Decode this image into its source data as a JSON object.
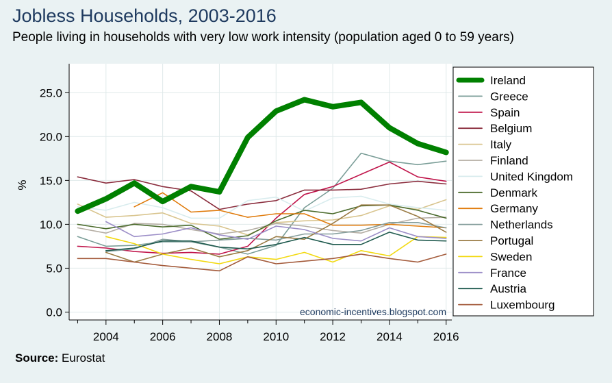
{
  "header": {
    "title": "Jobless Households, 2003-2016",
    "subtitle": "People living in households with very low work intensity (population aged 0 to 59 years)"
  },
  "footer": {
    "source_label": "Source:",
    "source_value": "Eurostat"
  },
  "watermark": "economic-incentives.blogspot.com",
  "chart_data": {
    "type": "line",
    "ylabel": "%",
    "xlabel": "",
    "x": [
      2003,
      2004,
      2005,
      2006,
      2007,
      2008,
      2009,
      2010,
      2011,
      2012,
      2013,
      2014,
      2015,
      2016
    ],
    "xticks": [
      2004,
      2006,
      2008,
      2010,
      2012,
      2014,
      2016
    ],
    "xtick_labels": [
      "2004",
      "2006",
      "2008",
      "2010",
      "2012",
      "2014",
      "2016"
    ],
    "yticks": [
      0,
      5,
      10,
      15,
      20,
      25
    ],
    "ytick_labels": [
      "0.0",
      "5.0",
      "10.0",
      "15.0",
      "20.0",
      "25.0"
    ],
    "xlim": [
      2002.7,
      2016.2
    ],
    "ylim": [
      -0.9,
      28.3
    ],
    "grid": true,
    "legend_position": "right",
    "series": [
      {
        "name": "Ireland",
        "color": "#008000",
        "highlight": true,
        "values": [
          11.5,
          12.9,
          14.7,
          12.6,
          14.3,
          13.7,
          19.9,
          22.9,
          24.2,
          23.4,
          23.9,
          21.0,
          19.2,
          18.2
        ]
      },
      {
        "name": "Greece",
        "color": "#7b9e98",
        "highlight": false,
        "values": [
          8.6,
          7.5,
          7.6,
          8.0,
          8.0,
          7.4,
          6.6,
          7.6,
          11.9,
          14.1,
          18.1,
          17.2,
          16.8,
          17.2
        ]
      },
      {
        "name": "Spain",
        "color": "#c0144a",
        "highlight": false,
        "values": [
          7.5,
          7.3,
          6.9,
          6.7,
          6.8,
          6.6,
          7.5,
          10.7,
          13.4,
          14.3,
          15.7,
          17.1,
          15.4,
          14.9
        ]
      },
      {
        "name": "Belgium",
        "color": "#8b2e3e",
        "highlight": false,
        "values": [
          15.4,
          14.7,
          15.1,
          14.3,
          13.8,
          11.7,
          12.3,
          12.7,
          13.9,
          13.9,
          14.0,
          14.6,
          14.9,
          14.6
        ]
      },
      {
        "name": "Italy",
        "color": "#d9c58f",
        "highlight": false,
        "values": [
          12.3,
          10.8,
          11.0,
          11.3,
          10.1,
          9.8,
          8.8,
          10.2,
          10.4,
          10.5,
          11.0,
          12.1,
          11.7,
          12.8
        ]
      },
      {
        "name": "Finland",
        "color": "#b5aea4",
        "highlight": false,
        "values": [
          9.6,
          9.0,
          10.1,
          10.0,
          9.4,
          8.9,
          9.3,
          10.1,
          9.8,
          9.3,
          9.0,
          10.0,
          10.7,
          10.8
        ]
      },
      {
        "name": "United Kingdom",
        "color": "#d8ecee",
        "highlight": false,
        "values": [
          12.0,
          11.6,
          12.5,
          11.9,
          10.7,
          10.7,
          12.7,
          13.1,
          11.5,
          13.0,
          13.2,
          12.3,
          11.9,
          11.6
        ]
      },
      {
        "name": "Denmark",
        "color": "#4b6b2c",
        "highlight": false,
        "values": [
          10.0,
          9.5,
          10.0,
          9.7,
          9.9,
          8.3,
          8.7,
          10.4,
          11.6,
          11.2,
          12.1,
          12.2,
          11.6,
          10.7
        ]
      },
      {
        "name": "Germany",
        "color": "#e07b0c",
        "highlight": false,
        "values": [
          null,
          null,
          12.0,
          13.6,
          11.4,
          11.6,
          10.8,
          11.2,
          11.2,
          9.9,
          9.9,
          10.0,
          9.8,
          9.6
        ]
      },
      {
        "name": "Netherlands",
        "color": "#849d9b",
        "highlight": false,
        "values": [
          null,
          6.9,
          7.2,
          8.3,
          8.0,
          8.2,
          8.4,
          8.2,
          8.9,
          8.9,
          9.3,
          10.2,
          10.2,
          9.6
        ]
      },
      {
        "name": "Portugal",
        "color": "#9a7b44",
        "highlight": false,
        "values": [
          null,
          6.8,
          5.7,
          6.6,
          7.3,
          6.3,
          7.0,
          8.6,
          8.3,
          10.1,
          12.2,
          12.2,
          10.9,
          9.1
        ]
      },
      {
        "name": "Sweden",
        "color": "#f2d90f",
        "highlight": false,
        "values": [
          null,
          8.6,
          7.8,
          6.6,
          6.0,
          5.5,
          6.3,
          6.0,
          6.8,
          5.7,
          7.0,
          6.4,
          8.6,
          8.5
        ]
      },
      {
        "name": "France",
        "color": "#9b8dc7",
        "highlight": false,
        "values": [
          null,
          10.3,
          8.6,
          8.9,
          9.6,
          8.8,
          8.3,
          9.8,
          9.4,
          8.4,
          8.1,
          9.6,
          8.6,
          8.4
        ]
      },
      {
        "name": "Austria",
        "color": "#1f5a4e",
        "highlight": false,
        "values": [
          null,
          7.0,
          7.3,
          8.1,
          8.1,
          7.4,
          7.2,
          7.7,
          8.5,
          7.7,
          7.7,
          9.1,
          8.2,
          8.1
        ]
      },
      {
        "name": "Luxembourg",
        "color": "#a35a3a",
        "highlight": false,
        "values": [
          6.1,
          6.1,
          5.7,
          5.3,
          5.0,
          4.7,
          6.3,
          5.5,
          5.8,
          6.1,
          6.6,
          6.1,
          5.7,
          6.6
        ]
      }
    ]
  }
}
